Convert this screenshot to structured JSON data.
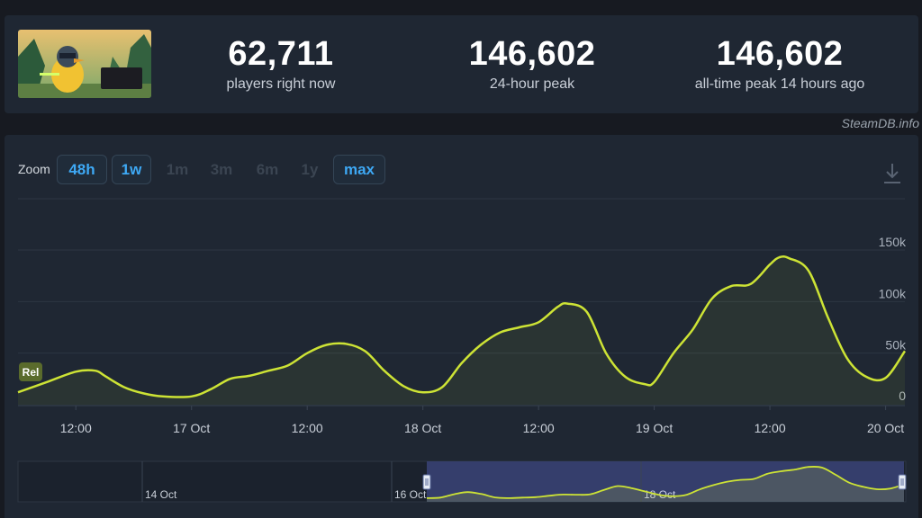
{
  "header": {
    "game_logo": "Escape from Duckov",
    "stats": [
      {
        "value": "62,711",
        "label": "players right now"
      },
      {
        "value": "146,602",
        "label": "24-hour peak"
      },
      {
        "value": "146,602",
        "label": "all-time peak 14 hours ago"
      }
    ]
  },
  "watermark": "SteamDB.info",
  "zoom": {
    "label": "Zoom",
    "options": [
      {
        "label": "48h",
        "active": true
      },
      {
        "label": "1w",
        "active": true
      },
      {
        "label": "1m",
        "active": false
      },
      {
        "label": "3m",
        "active": false
      },
      {
        "label": "6m",
        "active": false
      },
      {
        "label": "1y",
        "active": false
      },
      {
        "label": "max",
        "active": true
      }
    ],
    "download_icon": "download-icon"
  },
  "rel_badge": "Rel",
  "colors": {
    "line": "#cde335",
    "navigator_fill": "#3a4378",
    "active_btn": "#3ea9f5"
  },
  "chart_data": {
    "type": "line",
    "title": "",
    "xlabel": "",
    "ylabel": "",
    "x_ticks": [
      "12:00",
      "17 Oct",
      "12:00",
      "18 Oct",
      "12:00",
      "19 Oct",
      "12:00",
      "20 Oct"
    ],
    "y_ticks": [
      "0",
      "50k",
      "100k",
      "150k"
    ],
    "ylim": [
      0,
      150000
    ],
    "series": [
      {
        "x": [
          "16 Oct 06:00",
          "16 Oct 09:00",
          "16 Oct 12:00",
          "16 Oct 14:00",
          "16 Oct 15:00",
          "16 Oct 17:00",
          "16 Oct 19:00",
          "16 Oct 21:00",
          "17 Oct 00:00",
          "17 Oct 02:00",
          "17 Oct 04:00",
          "17 Oct 06:00",
          "17 Oct 08:00",
          "17 Oct 10:00",
          "17 Oct 12:00",
          "17 Oct 14:00",
          "17 Oct 16:00",
          "17 Oct 18:00",
          "17 Oct 20:00",
          "17 Oct 22:00",
          "18 Oct 00:00",
          "18 Oct 02:00",
          "18 Oct 04:00",
          "18 Oct 06:00",
          "18 Oct 08:00",
          "18 Oct 10:00",
          "18 Oct 12:00",
          "18 Oct 14:00",
          "18 Oct 15:00",
          "18 Oct 17:00",
          "18 Oct 19:00",
          "18 Oct 21:00",
          "18 Oct 23:00",
          "19 Oct 00:00",
          "19 Oct 02:00",
          "19 Oct 04:00",
          "19 Oct 06:00",
          "19 Oct 08:00",
          "19 Oct 10:00",
          "19 Oct 12:00",
          "19 Oct 13:00",
          "19 Oct 14:00",
          "19 Oct 16:00",
          "19 Oct 18:00",
          "19 Oct 20:00",
          "19 Oct 22:00",
          "20 Oct 00:00",
          "20 Oct 02:00"
        ],
        "values": [
          12000,
          22000,
          32000,
          33000,
          28000,
          17000,
          11000,
          8000,
          8000,
          15000,
          25000,
          28000,
          33000,
          38000,
          50000,
          58000,
          59000,
          52000,
          33000,
          18000,
          12000,
          17000,
          40000,
          58000,
          70000,
          75000,
          80000,
          95000,
          98000,
          90000,
          50000,
          27000,
          20000,
          22000,
          50000,
          73000,
          103000,
          115000,
          117000,
          136000,
          143000,
          142000,
          130000,
          85000,
          45000,
          27000,
          26000,
          52000
        ]
      }
    ],
    "navigator": {
      "ticks": [
        "14 Oct",
        "16 Oct",
        "18 Oct"
      ],
      "values": [
        8000,
        10000,
        24000,
        33000,
        25000,
        11000,
        8000,
        10000,
        12000,
        18000,
        23000,
        22000,
        24000,
        42000,
        58000,
        50000,
        36000,
        22000,
        16000,
        21000,
        44000,
        62000,
        76000,
        84000,
        88000,
        110000,
        120000,
        127000,
        138000,
        135000,
        105000,
        72000,
        55000,
        45000,
        48000,
        65000
      ]
    }
  }
}
